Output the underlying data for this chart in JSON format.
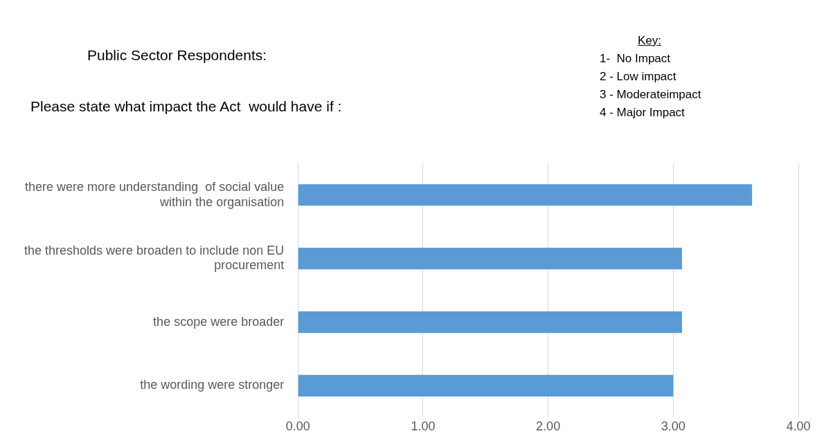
{
  "chart_data": {
    "type": "bar",
    "orientation": "horizontal",
    "title": "Public Sector Respondents:",
    "subtitle": "Please state what impact the Act  would have if :",
    "annotations": [
      "Key:",
      "1-  No Impact",
      "2 - Low impact",
      "3 - Moderateimpact",
      "4 - Major Impact"
    ],
    "categories": [
      "there were more understanding  of social value within the organisation",
      "the thresholds were broaden to include non EU procurement",
      "the scope were broader",
      "the wording were stronger"
    ],
    "values": [
      3.63,
      3.07,
      3.07,
      3.0
    ],
    "color": "#5b9bd5",
    "xlim": [
      0,
      4
    ],
    "xticks": [
      {
        "value": 0,
        "label": "0.00"
      },
      {
        "value": 1,
        "label": "1.00"
      },
      {
        "value": 2,
        "label": "2.00"
      },
      {
        "value": 3,
        "label": "3.00"
      },
      {
        "value": 4,
        "label": "4.00"
      }
    ],
    "grid": "x",
    "legend": false
  }
}
